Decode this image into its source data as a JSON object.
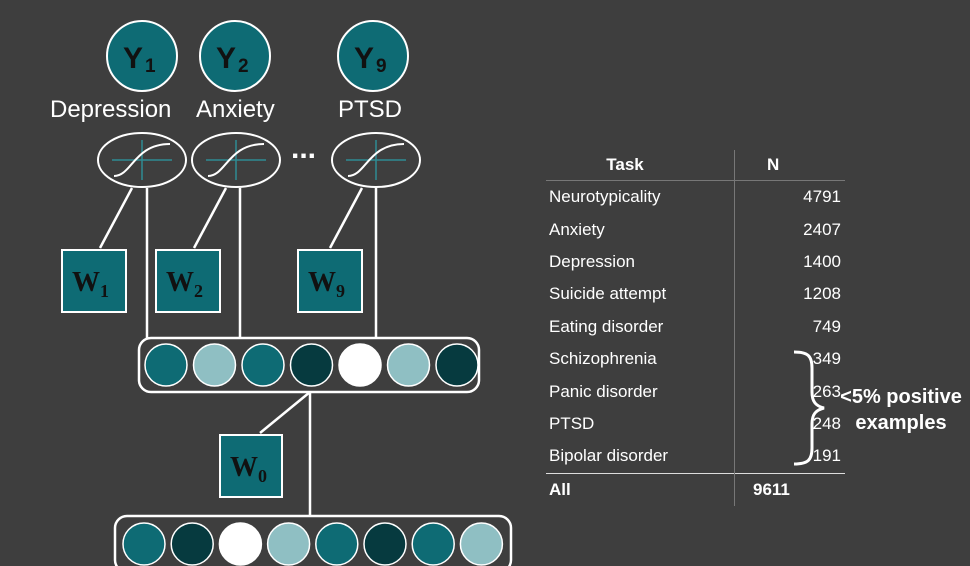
{
  "diagram": {
    "outputs": [
      {
        "letter": "Y",
        "sub": "1",
        "label": "Depression"
      },
      {
        "letter": "Y",
        "sub": "2",
        "label": "Anxiety"
      },
      {
        "letter": "Y",
        "sub": "9",
        "label": "PTSD"
      }
    ],
    "ellipsis": "...",
    "task_weights": [
      {
        "letter": "W",
        "sub": "1"
      },
      {
        "letter": "W",
        "sub": "2"
      },
      {
        "letter": "W",
        "sub": "9"
      }
    ],
    "shared_weight": {
      "letter": "W",
      "sub": "0"
    },
    "hidden_units": [
      "mid",
      "light",
      "mid",
      "dark",
      "white",
      "light",
      "dark"
    ],
    "input_units": [
      "mid",
      "dark",
      "white",
      "light",
      "mid",
      "dark",
      "mid",
      "light"
    ],
    "unit_colors": {
      "mid": "#0e6b74",
      "dark": "#063a3f",
      "light": "#8fbfc3",
      "white": "#ffffff"
    }
  },
  "table": {
    "header": {
      "task": "Task",
      "n": "N"
    },
    "rows": [
      {
        "task": "Neurotypicality",
        "n": "4791"
      },
      {
        "task": "Anxiety",
        "n": "2407"
      },
      {
        "task": "Depression",
        "n": "1400"
      },
      {
        "task": "Suicide attempt",
        "n": "1208"
      },
      {
        "task": "Eating disorder",
        "n": "749"
      },
      {
        "task": "Schizophrenia",
        "n": "349"
      },
      {
        "task": "Panic disorder",
        "n": "263"
      },
      {
        "task": "PTSD",
        "n": "248"
      },
      {
        "task": "Bipolar disorder",
        "n": "191"
      }
    ],
    "total": {
      "task": "All",
      "n": "9611"
    }
  },
  "annotation": {
    "line1": "<5% positive",
    "line2": "examples"
  }
}
